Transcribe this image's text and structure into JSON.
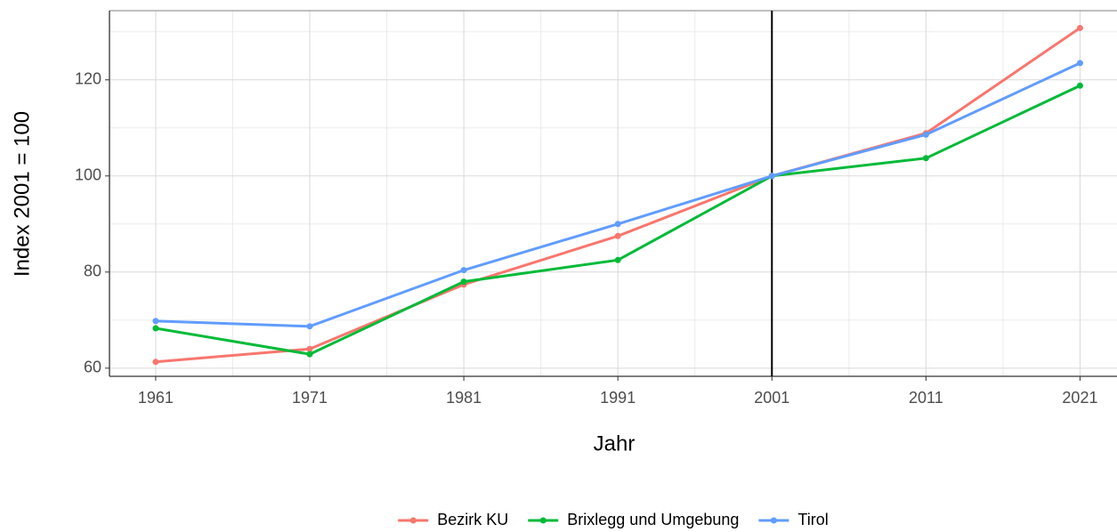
{
  "chart_data": {
    "type": "line",
    "x_label": "Jahr",
    "y_label": "Index 2001 = 100",
    "x": [
      1961,
      1971,
      1981,
      1991,
      2001,
      2011,
      2021
    ],
    "series": [
      {
        "name": "Bezirk KU",
        "color": "#F8766D",
        "values": [
          61.3,
          64.0,
          77.4,
          87.5,
          100,
          108.9,
          130.8
        ]
      },
      {
        "name": "Brixlegg und Umgebung",
        "color": "#00BA38",
        "values": [
          68.3,
          62.9,
          78.0,
          82.5,
          100,
          103.7,
          118.8
        ]
      },
      {
        "name": "Tirol",
        "color": "#619CFF",
        "values": [
          69.8,
          68.7,
          80.4,
          90.0,
          100,
          108.6,
          123.5
        ]
      }
    ],
    "xlim": [
      1958.0,
      2023.4
    ],
    "xticks": [
      1961,
      1971,
      1981,
      1991,
      2001,
      2011,
      2021
    ],
    "ylim": [
      58.3,
      134.4
    ],
    "yticks": [
      60,
      80,
      100,
      120
    ],
    "vline": 2001,
    "grid": true,
    "minor_grid": true,
    "legend": "bottom"
  }
}
